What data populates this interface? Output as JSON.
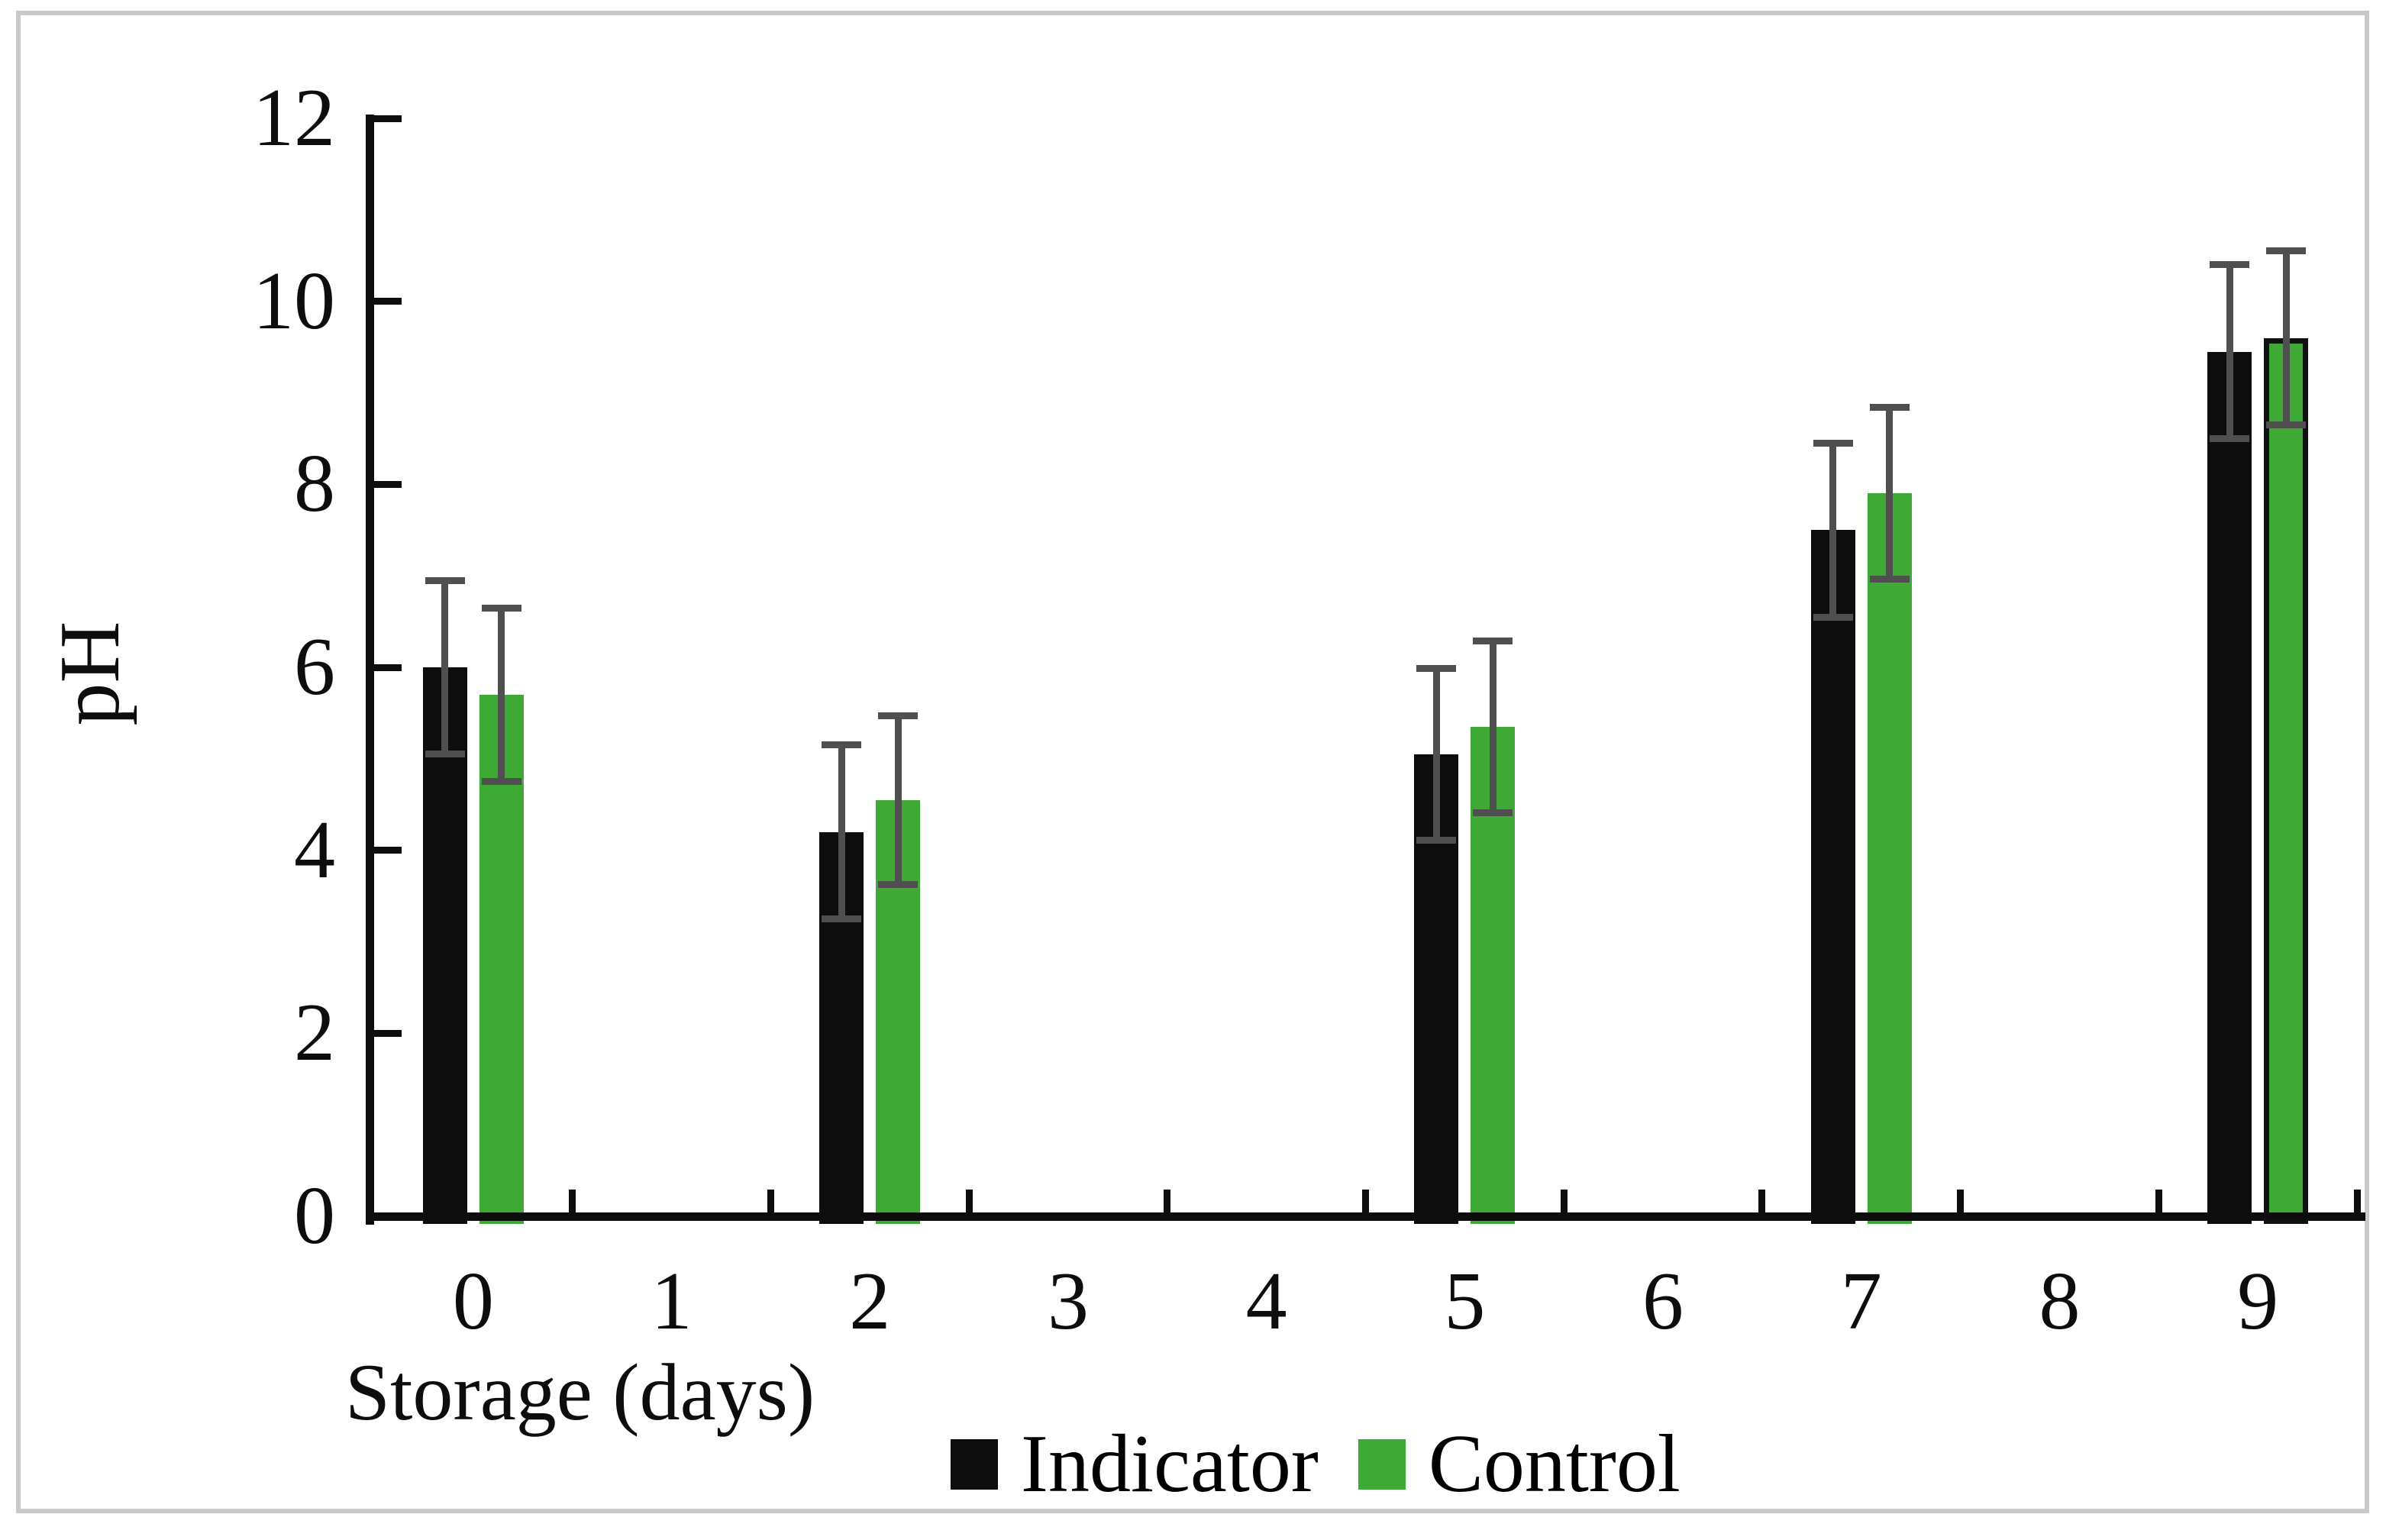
{
  "chart_data": {
    "type": "bar",
    "title": "",
    "xlabel": "Storage (days)",
    "ylabel": "pH",
    "x_categories": [
      "0",
      "1",
      "2",
      "3",
      "4",
      "5",
      "6",
      "7",
      "8",
      "9"
    ],
    "y_ticks": [
      0,
      2,
      4,
      6,
      8,
      10,
      12
    ],
    "ylim": [
      0,
      12
    ],
    "grid": false,
    "legend_position": "bottom-center",
    "axis_color": "#0d0d0d",
    "error_bar_color": "#4f4f4f",
    "series": [
      {
        "name": "Indicator",
        "color": "#0d0d0d",
        "points": [
          {
            "day": 0,
            "value": 6.0,
            "error": 0.95
          },
          {
            "day": 2,
            "value": 4.2,
            "error": 0.95
          },
          {
            "day": 5,
            "value": 5.05,
            "error": 0.94
          },
          {
            "day": 7,
            "value": 7.5,
            "error": 0.95
          },
          {
            "day": 9,
            "value": 9.45,
            "error": 0.95
          }
        ]
      },
      {
        "name": "Control",
        "color": "#3ea935",
        "points": [
          {
            "day": 0,
            "value": 5.7,
            "error": 0.95
          },
          {
            "day": 2,
            "value": 4.55,
            "error": 0.92
          },
          {
            "day": 5,
            "value": 5.35,
            "error": 0.94
          },
          {
            "day": 7,
            "value": 7.9,
            "error": 0.94
          },
          {
            "day": 9,
            "value": 9.6,
            "error": 0.95,
            "outlined": true
          }
        ]
      }
    ]
  }
}
